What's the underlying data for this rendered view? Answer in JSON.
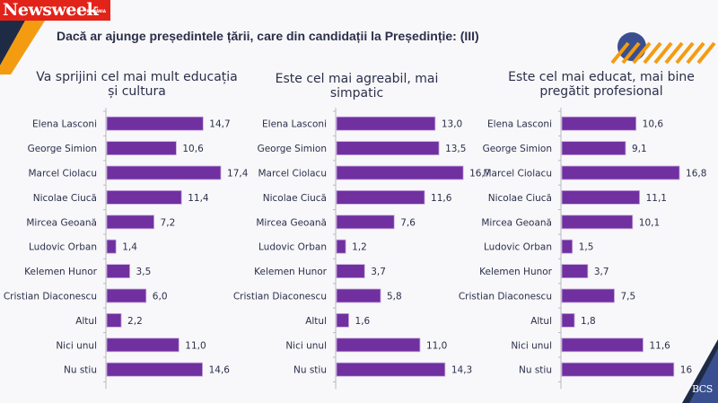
{
  "header": {
    "logo_text": "Newsweek",
    "logo_subtext": "ROMÂNIA",
    "title": "Dacă ar ajunge președintele țării, care din candidații la Președinție: (III)"
  },
  "footer": {
    "logo_text": "BCS"
  },
  "colors": {
    "bar": "#7030a0",
    "bar_border": "#c8a8e0",
    "text": "#2b2f4a",
    "brand_red": "#e2231a",
    "accent_orange": "#f39c12",
    "accent_navy": "#1e2b45",
    "accent_blue": "#3a4f8f"
  },
  "chart_data": [
    {
      "type": "bar",
      "orientation": "horizontal",
      "title": "Va sprijini cel mai mult educația și cultura",
      "title_lines": [
        "Va sprijini cel mai mult educația",
        "și cultura"
      ],
      "categories": [
        "Elena Lasconi",
        "George Simion",
        "Marcel Ciolacu",
        "Nicolae Ciucă",
        "Mircea Geoană",
        "Ludovic Orban",
        "Kelemen Hunor",
        "Cristian Diaconescu",
        "Altul",
        "Nici unul",
        "Nu stiu"
      ],
      "values": [
        14.7,
        10.6,
        17.4,
        11.4,
        7.2,
        1.4,
        3.5,
        6.0,
        2.2,
        11.0,
        14.6
      ],
      "labels": [
        "14,7",
        "10,6",
        "17,4",
        "11,4",
        "7,2",
        "1,4",
        "3,5",
        "6,0",
        "2,2",
        "11,0",
        "14,6"
      ],
      "xlabel": "",
      "ylabel": "",
      "grid": false,
      "legend": "none"
    },
    {
      "type": "bar",
      "orientation": "horizontal",
      "title": "Este cel mai agreabil, mai simpatic",
      "title_lines": [
        "Este cel mai agreabil, mai",
        "simpatic"
      ],
      "categories": [
        "Elena Lasconi",
        "George Simion",
        "Marcel Ciolacu",
        "Nicolae Ciucă",
        "Mircea Geoană",
        "Ludovic Orban",
        "Kelemen Hunor",
        "Cristian Diaconescu",
        "Altul",
        "Nici unul",
        "Nu stiu"
      ],
      "values": [
        13.0,
        13.5,
        16.7,
        11.6,
        7.6,
        1.2,
        3.7,
        5.8,
        1.6,
        11.0,
        14.3
      ],
      "labels": [
        "13,0",
        "13,5",
        "16,7",
        "11,6",
        "7,6",
        "1,2",
        "3,7",
        "5,8",
        "1,6",
        "11,0",
        "14,3"
      ],
      "xlabel": "",
      "ylabel": "",
      "grid": false,
      "legend": "none"
    },
    {
      "type": "bar",
      "orientation": "horizontal",
      "title": "Este cel mai educat, mai bine pregătit profesional",
      "title_lines": [
        "Este cel mai educat, mai bine",
        "pregătit profesional"
      ],
      "categories": [
        "Elena Lasconi",
        "George Simion",
        "Marcel Ciolacu",
        "Nicolae Ciucă",
        "Mircea Geoană",
        "Ludovic Orban",
        "Kelemen Hunor",
        "Cristian Diaconescu",
        "Altul",
        "Nici unul",
        "Nu stiu"
      ],
      "values": [
        10.6,
        9.1,
        16.8,
        11.1,
        10.1,
        1.5,
        3.7,
        7.5,
        1.8,
        11.6,
        16
      ],
      "labels": [
        "10,6",
        "9,1",
        "16,8",
        "11,1",
        "10,1",
        "1,5",
        "3,7",
        "7,5",
        "1,8",
        "11,6",
        "16"
      ],
      "xlabel": "",
      "ylabel": "",
      "grid": false,
      "legend": "none"
    }
  ]
}
